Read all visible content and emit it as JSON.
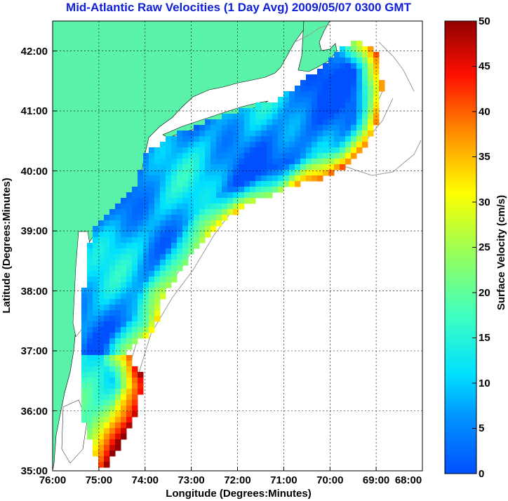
{
  "title": "Mid-Atlantic Raw Velocities (1 Day Avg) 2009/05/07 0300 GMT",
  "map": {
    "xlabel": "Longitude (Degrees:Minutes)",
    "ylabel": "Latitude (Degrees:Minutes)",
    "x_ticks": [
      "76:00",
      "75:00",
      "74:00",
      "73:00",
      "72:00",
      "71:00",
      "70:00",
      "69:00",
      "68:00"
    ],
    "y_ticks": [
      "35:00",
      "36:00",
      "37:00",
      "38:00",
      "39:00",
      "40:00",
      "41:00",
      "42:00"
    ],
    "x_range": [
      -76,
      -68
    ],
    "y_range": [
      35,
      42.5
    ],
    "land_color": "#5af2a8",
    "water_color": "#ffffff"
  },
  "colorbar": {
    "label": "Surface Velocity (cm/s)",
    "ticks": [
      "0",
      "5",
      "10",
      "15",
      "20",
      "25",
      "30",
      "35",
      "40",
      "45",
      "50"
    ],
    "range": [
      0,
      50
    ],
    "colormap": "jet"
  }
}
